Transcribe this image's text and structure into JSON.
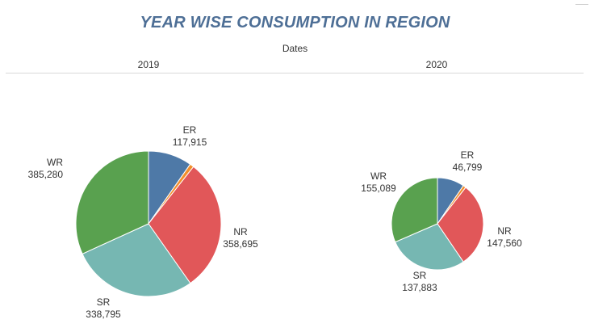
{
  "header": {
    "title": "YEAR WISE CONSUMPTION IN REGION",
    "column_header": "Dates"
  },
  "colors": {
    "ER": "#4e79a7",
    "NR": "#e15759",
    "SR": "#76b7b2",
    "WR": "#59a14f",
    "Other": "#f28e2b"
  },
  "chart_data": [
    {
      "type": "pie",
      "year": "2019",
      "slices": [
        {
          "name": "ER",
          "value": 117915,
          "label": "117,915"
        },
        {
          "name": "Other",
          "value": 11000,
          "label": ""
        },
        {
          "name": "NR",
          "value": 358695,
          "label": "358,695"
        },
        {
          "name": "SR",
          "value": 338795,
          "label": "338,795"
        },
        {
          "name": "WR",
          "value": 385280,
          "label": "385,280"
        }
      ]
    },
    {
      "type": "pie",
      "year": "2020",
      "slices": [
        {
          "name": "ER",
          "value": 46799,
          "label": "46,799"
        },
        {
          "name": "Other",
          "value": 5000,
          "label": ""
        },
        {
          "name": "NR",
          "value": 147560,
          "label": "147,560"
        },
        {
          "name": "SR",
          "value": 137883,
          "label": "137,883"
        },
        {
          "name": "WR",
          "value": 155089,
          "label": "155,089"
        }
      ]
    }
  ]
}
